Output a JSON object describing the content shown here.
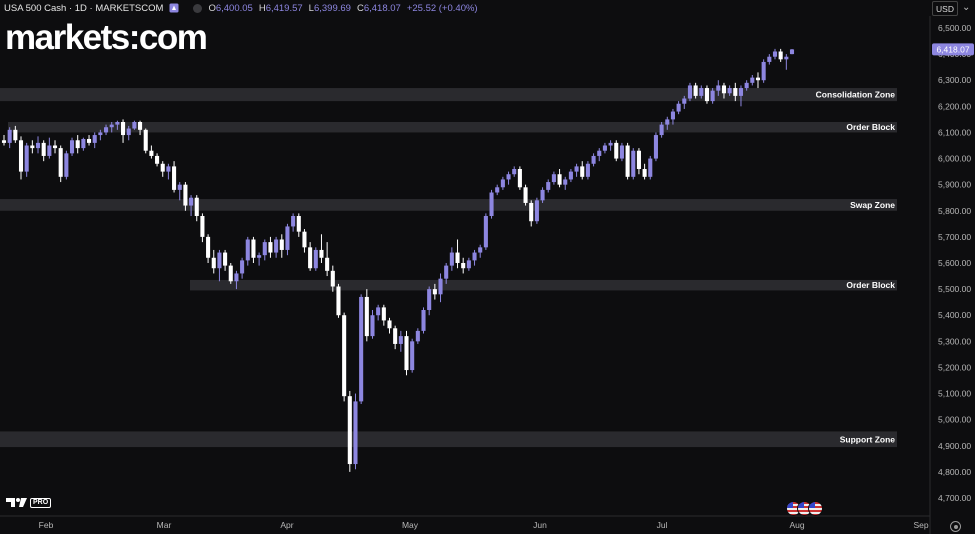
{
  "header": {
    "symbol": "USA 500 Cash · 1D · MARKETSCOM",
    "open_label": "O",
    "open": "6,400.05",
    "high_label": "H",
    "high": "6,419.57",
    "low_label": "L",
    "low": "6,399.69",
    "close_label": "C",
    "close": "6,418.07",
    "change": "+25.52 (+0.40%)",
    "currency": "USD",
    "chevron_icon": "chevron-down-icon",
    "bell_icon": "bell-icon",
    "status_icon": "market-status-dot-icon"
  },
  "brand": {
    "logo_text": "markets:com",
    "tradingview_pro": "PRO"
  },
  "colors": {
    "background": "#0d0d0f",
    "up": "#8d86e0",
    "down": "#ffffff",
    "zone": "#2a2a2e",
    "zone_label": "#ffffff"
  },
  "chart_data": {
    "type": "candlestick",
    "title": "USA 500 Cash",
    "timeframe": "1D",
    "ylim": [
      4700,
      6500
    ],
    "y_ticks": [
      "6,500.00",
      "6,400.00",
      "6,300.00",
      "6,200.00",
      "6,100.00",
      "6,000.00",
      "5,900.00",
      "5,800.00",
      "5,700.00",
      "5,600.00",
      "5,500.00",
      "5,400.00",
      "5,300.00",
      "5,200.00",
      "5,100.00",
      "5,000.00",
      "4,900.00",
      "4,800.00",
      "4,700.00"
    ],
    "x_ticks": [
      "Feb",
      "Mar",
      "Apr",
      "May",
      "Jun",
      "Jul",
      "Aug",
      "Sep"
    ],
    "last_price_label": "6,418.07",
    "last_price": 6418.07,
    "zones": [
      {
        "label": "Consolidation Zone",
        "low": 6220,
        "high": 6270
      },
      {
        "label": "Order Block",
        "low": 6100,
        "high": 6140
      },
      {
        "label": "Swap Zone",
        "low": 5800,
        "high": 5845
      },
      {
        "label": "Order Block",
        "low": 5495,
        "high": 5535
      },
      {
        "label": "Support Zone",
        "low": 4895,
        "high": 4955
      }
    ],
    "candles": [
      [
        6070,
        6090,
        6050,
        6060
      ],
      [
        6060,
        6120,
        6040,
        6110
      ],
      [
        6110,
        6125,
        6060,
        6070
      ],
      [
        6070,
        6085,
        5920,
        5950
      ],
      [
        5950,
        6060,
        5930,
        6050
      ],
      [
        6050,
        6070,
        6020,
        6040
      ],
      [
        6040,
        6085,
        6020,
        6060
      ],
      [
        6060,
        6070,
        5990,
        6010
      ],
      [
        6010,
        6080,
        6000,
        6050
      ],
      [
        6050,
        6070,
        6020,
        6040
      ],
      [
        6040,
        6050,
        5910,
        5930
      ],
      [
        5930,
        6030,
        5920,
        6020
      ],
      [
        6020,
        6080,
        6010,
        6070
      ],
      [
        6070,
        6090,
        6020,
        6040
      ],
      [
        6040,
        6080,
        6030,
        6075
      ],
      [
        6075,
        6090,
        6050,
        6060
      ],
      [
        6060,
        6100,
        6040,
        6090
      ],
      [
        6090,
        6110,
        6070,
        6100
      ],
      [
        6100,
        6130,
        6090,
        6120
      ],
      [
        6120,
        6140,
        6100,
        6130
      ],
      [
        6130,
        6145,
        6110,
        6140
      ],
      [
        6140,
        6150,
        6060,
        6090
      ],
      [
        6090,
        6125,
        6070,
        6115
      ],
      [
        6115,
        6145,
        6110,
        6140
      ],
      [
        6140,
        6145,
        6090,
        6110
      ],
      [
        6110,
        6115,
        6020,
        6030
      ],
      [
        6030,
        6050,
        6000,
        6010
      ],
      [
        6010,
        6020,
        5970,
        5980
      ],
      [
        5980,
        5990,
        5930,
        5950
      ],
      [
        5950,
        5980,
        5920,
        5970
      ],
      [
        5970,
        5990,
        5870,
        5880
      ],
      [
        5880,
        5910,
        5840,
        5900
      ],
      [
        5900,
        5910,
        5800,
        5820
      ],
      [
        5820,
        5860,
        5780,
        5850
      ],
      [
        5850,
        5860,
        5760,
        5780
      ],
      [
        5780,
        5790,
        5680,
        5700
      ],
      [
        5700,
        5710,
        5600,
        5620
      ],
      [
        5620,
        5650,
        5560,
        5580
      ],
      [
        5580,
        5650,
        5530,
        5640
      ],
      [
        5640,
        5650,
        5570,
        5590
      ],
      [
        5590,
        5600,
        5520,
        5530
      ],
      [
        5530,
        5570,
        5500,
        5560
      ],
      [
        5560,
        5620,
        5540,
        5610
      ],
      [
        5610,
        5700,
        5590,
        5690
      ],
      [
        5690,
        5700,
        5600,
        5620
      ],
      [
        5620,
        5640,
        5590,
        5630
      ],
      [
        5630,
        5690,
        5610,
        5680
      ],
      [
        5680,
        5700,
        5620,
        5640
      ],
      [
        5640,
        5700,
        5620,
        5690
      ],
      [
        5690,
        5710,
        5620,
        5650
      ],
      [
        5650,
        5750,
        5630,
        5740
      ],
      [
        5740,
        5790,
        5720,
        5780
      ],
      [
        5780,
        5790,
        5700,
        5720
      ],
      [
        5720,
        5730,
        5640,
        5660
      ],
      [
        5660,
        5680,
        5570,
        5580
      ],
      [
        5580,
        5660,
        5570,
        5650
      ],
      [
        5650,
        5710,
        5600,
        5620
      ],
      [
        5620,
        5680,
        5550,
        5570
      ],
      [
        5570,
        5590,
        5490,
        5510
      ],
      [
        5510,
        5520,
        5390,
        5400
      ],
      [
        5400,
        5410,
        5070,
        5090
      ],
      [
        5090,
        5110,
        4800,
        4830
      ],
      [
        4830,
        5100,
        4810,
        5070
      ],
      [
        5070,
        5480,
        5060,
        5470
      ],
      [
        5470,
        5500,
        5300,
        5320
      ],
      [
        5320,
        5420,
        5310,
        5400
      ],
      [
        5400,
        5440,
        5380,
        5430
      ],
      [
        5430,
        5440,
        5360,
        5380
      ],
      [
        5380,
        5390,
        5330,
        5350
      ],
      [
        5350,
        5360,
        5270,
        5290
      ],
      [
        5290,
        5340,
        5260,
        5320
      ],
      [
        5320,
        5340,
        5170,
        5190
      ],
      [
        5190,
        5310,
        5180,
        5300
      ],
      [
        5300,
        5350,
        5290,
        5340
      ],
      [
        5340,
        5430,
        5330,
        5420
      ],
      [
        5420,
        5510,
        5400,
        5500
      ],
      [
        5500,
        5520,
        5460,
        5480
      ],
      [
        5480,
        5560,
        5450,
        5540
      ],
      [
        5540,
        5600,
        5520,
        5590
      ],
      [
        5590,
        5660,
        5570,
        5640
      ],
      [
        5640,
        5690,
        5580,
        5600
      ],
      [
        5600,
        5620,
        5560,
        5580
      ],
      [
        5580,
        5620,
        5570,
        5610
      ],
      [
        5610,
        5650,
        5590,
        5640
      ],
      [
        5640,
        5670,
        5620,
        5660
      ],
      [
        5660,
        5790,
        5650,
        5780
      ],
      [
        5780,
        5880,
        5770,
        5870
      ],
      [
        5870,
        5900,
        5860,
        5890
      ],
      [
        5890,
        5930,
        5880,
        5920
      ],
      [
        5920,
        5950,
        5900,
        5940
      ],
      [
        5940,
        5970,
        5930,
        5960
      ],
      [
        5960,
        5970,
        5880,
        5890
      ],
      [
        5890,
        5900,
        5820,
        5830
      ],
      [
        5830,
        5840,
        5740,
        5760
      ],
      [
        5760,
        5850,
        5750,
        5840
      ],
      [
        5840,
        5890,
        5830,
        5880
      ],
      [
        5880,
        5920,
        5870,
        5910
      ],
      [
        5910,
        5950,
        5900,
        5940
      ],
      [
        5940,
        5960,
        5890,
        5900
      ],
      [
        5900,
        5930,
        5880,
        5920
      ],
      [
        5920,
        5960,
        5910,
        5950
      ],
      [
        5950,
        5980,
        5930,
        5970
      ],
      [
        5970,
        5990,
        5920,
        5930
      ],
      [
        5930,
        5990,
        5920,
        5980
      ],
      [
        5980,
        6020,
        5970,
        6010
      ],
      [
        6010,
        6040,
        5990,
        6030
      ],
      [
        6030,
        6060,
        6020,
        6050
      ],
      [
        6050,
        6070,
        6030,
        6060
      ],
      [
        6060,
        6070,
        5990,
        6000
      ],
      [
        6000,
        6060,
        5990,
        6050
      ],
      [
        6050,
        6060,
        5920,
        5930
      ],
      [
        5930,
        6040,
        5920,
        6030
      ],
      [
        6030,
        6040,
        5940,
        5960
      ],
      [
        5960,
        5980,
        5920,
        5930
      ],
      [
        5930,
        6010,
        5920,
        6000
      ],
      [
        6000,
        6100,
        5990,
        6090
      ],
      [
        6090,
        6140,
        6080,
        6130
      ],
      [
        6130,
        6160,
        6110,
        6150
      ],
      [
        6150,
        6190,
        6130,
        6180
      ],
      [
        6180,
        6220,
        6170,
        6210
      ],
      [
        6210,
        6240,
        6190,
        6230
      ],
      [
        6230,
        6290,
        6220,
        6280
      ],
      [
        6280,
        6290,
        6230,
        6240
      ],
      [
        6240,
        6280,
        6230,
        6270
      ],
      [
        6270,
        6280,
        6210,
        6220
      ],
      [
        6220,
        6270,
        6210,
        6260
      ],
      [
        6260,
        6300,
        6240,
        6280
      ],
      [
        6280,
        6290,
        6230,
        6250
      ],
      [
        6250,
        6280,
        6240,
        6270
      ],
      [
        6270,
        6290,
        6220,
        6240
      ],
      [
        6240,
        6280,
        6200,
        6270
      ],
      [
        6270,
        6300,
        6260,
        6290
      ],
      [
        6290,
        6320,
        6280,
        6310
      ],
      [
        6310,
        6330,
        6270,
        6300
      ],
      [
        6300,
        6380,
        6290,
        6370
      ],
      [
        6370,
        6400,
        6360,
        6390
      ],
      [
        6390,
        6420,
        6380,
        6410
      ],
      [
        6410,
        6420,
        6370,
        6380
      ],
      [
        6380,
        6400,
        6340,
        6390
      ],
      [
        6400.05,
        6419.57,
        6399.69,
        6418.07
      ]
    ]
  }
}
